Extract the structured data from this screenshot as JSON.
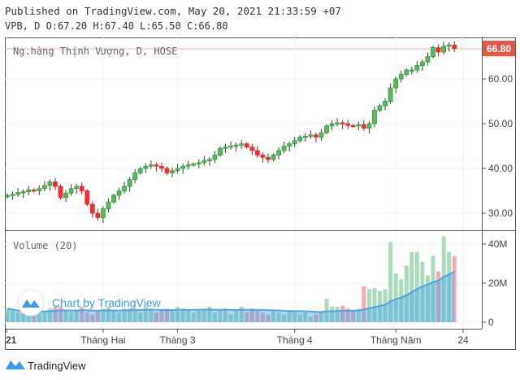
{
  "header": {
    "published": "Published on TradingView.com, May 20, 2021 21:33:59 +07",
    "ohlc": "VPB, D O:67.20 H:67.40 L:65.50 C:66.80"
  },
  "legend": {
    "symbol": "Ng.hàng Thịnh Vượng, D, HOSE",
    "volume": "Volume (20)"
  },
  "watermark": "Chart by TradingView",
  "footer_logo": "TradingView",
  "last_price_label": "66.80",
  "colors": {
    "up": "#26a03a",
    "down": "#ef2f2f",
    "vol_up": "#a8dcbb",
    "vol_down": "#f5aab0",
    "ma": "#4aa6e8",
    "last": "#e05a4a"
  },
  "chart_data": [
    {
      "type": "candlestick",
      "title": "Ng.hàng Thịnh Vượng, D, HOSE",
      "y_ticks": [
        "60.00",
        "50.00",
        "40.00",
        "30.00"
      ],
      "y_tick_values": [
        60,
        50,
        40,
        30
      ],
      "x_ticks": [
        "21",
        "Tháng Hai",
        "Tháng 3",
        "Tháng 4",
        "Tháng Năm",
        "24"
      ],
      "x_tick_index": [
        0,
        18,
        32,
        54,
        73,
        86
      ],
      "last": 66.8,
      "close": [
        34,
        34.2,
        34.6,
        34.8,
        35.2,
        35,
        35.5,
        36.2,
        37,
        36,
        33.5,
        34.5,
        35.5,
        36,
        35,
        32,
        30,
        29,
        31,
        32.5,
        34,
        35,
        36,
        37.5,
        39,
        40,
        40.5,
        40.8,
        40.5,
        40,
        39,
        39.5,
        40,
        40.5,
        40.8,
        41,
        41.3,
        41.8,
        42,
        43,
        44.5,
        44.8,
        45,
        45.2,
        45.5,
        44.8,
        44,
        43,
        42.5,
        42,
        43,
        44,
        45,
        45.5,
        46.2,
        47,
        47.2,
        47.5,
        47,
        48,
        49.5,
        50,
        50.2,
        50,
        49.6,
        49.5,
        49.8,
        49,
        50,
        53,
        54,
        55,
        58,
        60,
        61,
        62,
        62,
        63,
        63.8,
        65,
        67,
        66,
        67.3,
        67.6,
        66.8
      ]
    },
    {
      "type": "bar",
      "title": "Volume (20)",
      "unit": "M",
      "y_ticks": [
        "40M",
        "20M",
        "0"
      ],
      "y_tick_values": [
        40,
        20,
        0
      ],
      "ma_period": 20,
      "values": [
        7,
        6,
        5,
        6,
        5,
        4,
        6,
        5,
        7,
        8,
        8,
        6,
        5,
        6,
        8,
        5,
        4,
        6,
        7,
        8,
        6,
        5,
        7,
        7,
        6,
        5,
        8,
        7,
        5,
        6,
        7,
        6,
        8,
        7,
        6,
        5,
        6,
        7,
        8,
        5,
        6,
        7,
        4,
        6,
        8,
        5,
        7,
        6,
        5,
        4,
        6,
        5,
        4,
        6,
        5,
        4,
        5,
        3,
        4,
        5,
        12,
        8,
        8,
        8.5,
        7,
        6,
        7,
        18.5,
        17,
        17.5,
        16,
        17,
        41,
        25,
        22,
        29,
        36,
        36,
        31,
        24,
        34,
        26,
        44,
        36,
        34
      ]
    }
  ]
}
